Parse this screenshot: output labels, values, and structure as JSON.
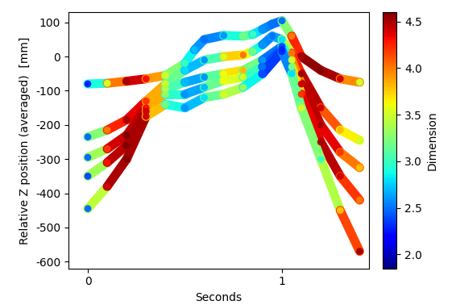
{
  "chart_data": {
    "type": "line",
    "x_label": "Seconds",
    "y_label": "Relative Z position (averaged)  [mm]",
    "xlim": [
      -0.1,
      1.45
    ],
    "xticks": [
      0,
      1
    ],
    "ylim": [
      -620,
      130
    ],
    "yticks": [
      -600,
      -500,
      -400,
      -300,
      -200,
      -100,
      0,
      100
    ],
    "colorbar": {
      "label": "Dimension",
      "range": [
        1.85,
        4.6
      ],
      "ticks": [
        2.0,
        2.5,
        3.0,
        3.5,
        4.0,
        4.5
      ]
    },
    "series": [
      {
        "x": [
          0,
          0.1,
          0.2,
          0.3,
          0.4,
          0.5,
          0.55,
          0.6,
          0.7,
          0.8,
          0.85,
          0.9,
          0.95,
          1.0,
          1.05,
          1.1,
          1.2,
          1.3,
          1.4
        ],
        "values": [
          -80,
          -78,
          -72,
          -65,
          -55,
          -20,
          20,
          50,
          62,
          60,
          65,
          80,
          95,
          105,
          60,
          0,
          -40,
          -65,
          -75
        ],
        "dimension": [
          2.3,
          3.5,
          4.5,
          4.3,
          3.5,
          3.0,
          2.7,
          2.5,
          2.6,
          3.2,
          3.0,
          2.6,
          2.5,
          2.5,
          4.0,
          4.5,
          4.6,
          4.4,
          3.5
        ]
      },
      {
        "x": [
          0,
          0.1,
          0.2,
          0.3,
          0.4,
          0.5,
          0.6,
          0.7,
          0.8,
          0.85,
          0.9,
          0.95,
          1.0,
          1.05,
          1.1,
          1.2,
          1.3,
          1.4
        ],
        "values": [
          -235,
          -215,
          -185,
          -130,
          -80,
          -40,
          -10,
          0,
          5,
          15,
          35,
          60,
          50,
          10,
          -50,
          -150,
          -215,
          -245
        ],
        "dimension": [
          2.5,
          4.0,
          4.5,
          4.2,
          3.5,
          2.8,
          2.6,
          3.5,
          4.0,
          3.2,
          2.6,
          2.5,
          2.8,
          4.0,
          4.5,
          4.4,
          3.8,
          3.5
        ]
      },
      {
        "x": [
          0,
          0.1,
          0.2,
          0.3,
          0.4,
          0.5,
          0.6,
          0.7,
          0.8,
          0.9,
          1.0,
          1.05,
          1.1,
          1.2,
          1.3,
          1.4
        ],
        "values": [
          -295,
          -270,
          -230,
          -150,
          -95,
          -75,
          -60,
          -50,
          -40,
          -10,
          30,
          -10,
          -80,
          -200,
          -280,
          -325
        ],
        "dimension": [
          2.5,
          4.2,
          4.6,
          4.3,
          3.4,
          2.7,
          2.6,
          3.6,
          3.8,
          2.6,
          2.4,
          3.5,
          4.4,
          4.5,
          4.2,
          3.8
        ]
      },
      {
        "x": [
          0,
          0.1,
          0.2,
          0.3,
          0.4,
          0.5,
          0.6,
          0.7,
          0.8,
          0.9,
          1.0,
          1.05,
          1.1,
          1.2,
          1.3,
          1.4
        ],
        "values": [
          -350,
          -310,
          -260,
          -160,
          -110,
          -110,
          -90,
          -70,
          -60,
          -30,
          20,
          -30,
          -110,
          -250,
          -350,
          -420
        ],
        "dimension": [
          2.4,
          4.3,
          4.6,
          4.4,
          3.3,
          2.6,
          2.7,
          3.6,
          3.5,
          2.5,
          2.3,
          3.2,
          4.2,
          4.5,
          4.4,
          4.0
        ]
      },
      {
        "x": [
          0,
          0.1,
          0.2,
          0.3,
          0.4,
          0.5,
          0.6,
          0.7,
          0.8,
          0.9,
          1.0,
          1.05,
          1.1,
          1.2,
          1.3,
          1.4
        ],
        "values": [
          -445,
          -380,
          -300,
          -175,
          -140,
          -150,
          -120,
          -110,
          -90,
          -50,
          15,
          -50,
          -150,
          -300,
          -450,
          -570
        ],
        "dimension": [
          2.5,
          4.4,
          4.6,
          4.4,
          3.2,
          2.6,
          2.8,
          3.5,
          3.3,
          2.4,
          2.3,
          2.8,
          3.5,
          3.0,
          3.8,
          4.5
        ]
      }
    ]
  }
}
